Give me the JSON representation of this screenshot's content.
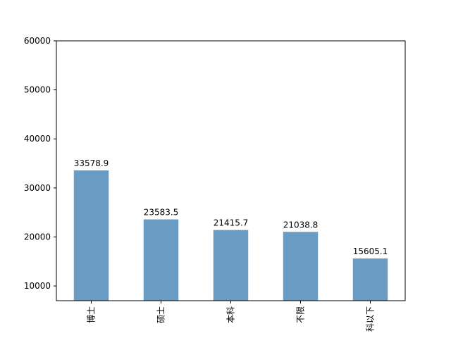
{
  "chart_data": {
    "type": "bar",
    "categories": [
      "博士",
      "硕士",
      "本科",
      "不限",
      "科以下"
    ],
    "values": [
      33578.9,
      23583.5,
      21415.7,
      21038.8,
      15605.1
    ],
    "color": "#6a9bc3",
    "ylim": [
      7000,
      60000
    ],
    "yticks": [
      10000,
      20000,
      30000,
      40000,
      50000,
      60000
    ],
    "grid": false
  }
}
